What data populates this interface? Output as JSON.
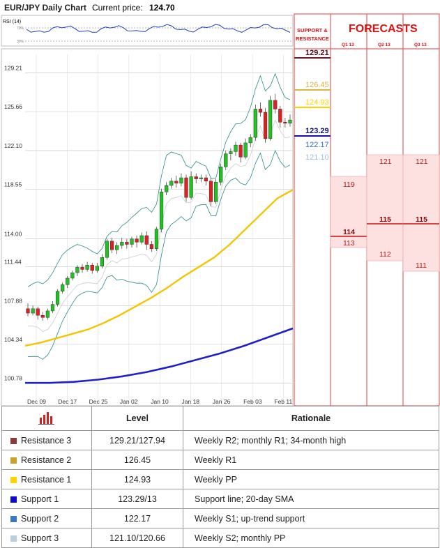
{
  "header": {
    "title": "EUR/JPY Daily Chart",
    "price_label": "Current price:",
    "price_value": "124.70"
  },
  "rsi": {
    "label": "RSI (14)",
    "upper": "70%",
    "lower": "30%"
  },
  "chart_data": {
    "type": "candlestick",
    "yticks": [
      "129.21",
      "125.66",
      "122.10",
      "118.55",
      "114.00",
      "111.44",
      "107.88",
      "104.34",
      "100.78"
    ],
    "ytick_values": [
      129.21,
      125.66,
      122.1,
      118.55,
      114.0,
      111.44,
      107.88,
      104.34,
      100.78
    ],
    "xticks": [
      "Dec 09",
      "Dec 17",
      "Dec 25",
      "Jan 02",
      "Jan 10",
      "Jan 18",
      "Jan 26",
      "Feb 03",
      "Feb 11"
    ],
    "ylim": [
      100.78,
      130.5
    ],
    "candles": [
      [
        107.6,
        107.2,
        108.1,
        106.9
      ],
      [
        107.2,
        107.6,
        107.9,
        107.0
      ],
      [
        107.6,
        107.0,
        107.8,
        106.6
      ],
      [
        107.0,
        106.8,
        107.3,
        106.5
      ],
      [
        106.8,
        107.4,
        107.6,
        106.6
      ],
      [
        107.4,
        108.0,
        108.3,
        107.2
      ],
      [
        108.0,
        109.2,
        109.4,
        107.8
      ],
      [
        109.2,
        109.8,
        110.0,
        109.0
      ],
      [
        109.8,
        110.4,
        110.6,
        109.5
      ],
      [
        110.4,
        110.9,
        111.1,
        110.2
      ],
      [
        110.9,
        111.4,
        111.6,
        110.6
      ],
      [
        111.4,
        111.2,
        111.7,
        110.9
      ],
      [
        111.2,
        111.6,
        111.9,
        111.0
      ],
      [
        111.6,
        111.1,
        111.8,
        110.8
      ],
      [
        111.1,
        111.5,
        111.8,
        110.9
      ],
      [
        111.5,
        112.3,
        112.6,
        111.3
      ],
      [
        112.3,
        113.8,
        114.0,
        112.1
      ],
      [
        113.8,
        113.0,
        114.1,
        112.7
      ],
      [
        113.0,
        113.4,
        113.7,
        112.6
      ],
      [
        113.4,
        113.7,
        114.1,
        113.1
      ],
      [
        113.7,
        113.5,
        114.0,
        113.1
      ],
      [
        113.5,
        114.0,
        114.2,
        113.2
      ],
      [
        114.0,
        113.7,
        114.3,
        113.2
      ],
      [
        113.7,
        114.3,
        114.6,
        113.5
      ],
      [
        114.3,
        113.5,
        114.7,
        113.0
      ],
      [
        113.5,
        113.1,
        113.8,
        112.8
      ],
      [
        113.1,
        114.9,
        115.1,
        112.9
      ],
      [
        114.9,
        118.3,
        118.6,
        114.6
      ],
      [
        118.3,
        118.9,
        119.2,
        118.0
      ],
      [
        118.9,
        119.3,
        119.6,
        118.6
      ],
      [
        119.3,
        119.1,
        119.8,
        118.7
      ],
      [
        119.1,
        119.6,
        120.0,
        118.8
      ],
      [
        119.6,
        117.8,
        119.9,
        117.4
      ],
      [
        117.8,
        119.7,
        120.2,
        117.6
      ],
      [
        119.7,
        119.5,
        120.0,
        119.1
      ],
      [
        119.5,
        119.6,
        119.9,
        119.2
      ],
      [
        119.6,
        119.3,
        119.9,
        118.9
      ],
      [
        119.3,
        117.4,
        119.6,
        117.0
      ],
      [
        117.4,
        119.2,
        119.5,
        117.2
      ],
      [
        119.2,
        120.6,
        120.9,
        118.9
      ],
      [
        120.6,
        121.8,
        122.1,
        120.3
      ],
      [
        121.8,
        122.0,
        122.3,
        121.2
      ],
      [
        122.0,
        122.6,
        122.9,
        121.6
      ],
      [
        122.6,
        121.5,
        122.8,
        121.0
      ],
      [
        121.5,
        122.8,
        123.2,
        121.3
      ],
      [
        122.8,
        123.3,
        123.6,
        122.4
      ],
      [
        123.3,
        125.9,
        126.3,
        123.0
      ],
      [
        125.9,
        125.6,
        126.5,
        125.2
      ],
      [
        125.6,
        123.2,
        126.0,
        122.8
      ],
      [
        123.2,
        126.7,
        127.1,
        123.0
      ],
      [
        126.7,
        125.9,
        127.3,
        125.5
      ],
      [
        125.9,
        124.7,
        126.2,
        124.2
      ],
      [
        124.7,
        124.6,
        125.1,
        124.2
      ],
      [
        124.6,
        124.9,
        125.4,
        124.3
      ]
    ],
    "sma_yellow": [
      104.2,
      104.5,
      104.9,
      105.3,
      105.7,
      106.3,
      107.0,
      107.8,
      108.6,
      109.5,
      110.5,
      111.4,
      112.3,
      113.5,
      114.9,
      116.3,
      117.7,
      118.5
    ],
    "sma_blue": [
      100.8,
      100.8,
      100.9,
      101.1,
      101.4,
      101.8,
      102.3,
      102.9,
      103.5,
      104.2,
      105.0,
      105.8
    ],
    "series": [
      {
        "name": "RSI (14)"
      }
    ]
  },
  "levels": [
    {
      "value": "129.21",
      "color": "#6b1a2e"
    },
    {
      "value": "126.45",
      "color": "#d9b440"
    },
    {
      "value": "124.93",
      "color": "#ffd200"
    },
    {
      "value": "123.29",
      "color": "#1010b0"
    },
    {
      "value": "122.17",
      "color": "#3a6fb0"
    },
    {
      "value": "121.10",
      "color": "#9ec2d8"
    }
  ],
  "forecasts": {
    "sr_label_1": "SUPPORT &",
    "sr_label_2": "RESISTANCE",
    "title": "FORECASTS",
    "quarters": [
      "Q1 13",
      "Q2 13",
      "Q3 13"
    ],
    "q1": {
      "high": "119",
      "mid": "114",
      "low": "113"
    },
    "q2": {
      "high": "121",
      "mid": "115",
      "low": "112"
    },
    "q3": {
      "high": "121",
      "mid": "115",
      "low": "111"
    }
  },
  "table": {
    "col_level": "Level",
    "col_rationale": "Rationale",
    "rows": [
      {
        "name": "Resistance 3",
        "level": "129.21/127.94",
        "rationale": "Weekly R2; monthly R1; 34-month high",
        "color": "#8b3a3a"
      },
      {
        "name": "Resistance 2",
        "level": "126.45",
        "rationale": "Weekly R1",
        "color": "#c9a227"
      },
      {
        "name": "Resistance 1",
        "level": "124.93",
        "rationale": "Weekly PP",
        "color": "#ffd200"
      },
      {
        "name": "Support 1",
        "level": "123.29/13",
        "rationale": "Support line; 20-day SMA",
        "color": "#0a0ad0"
      },
      {
        "name": "Support 2",
        "level": "122.17",
        "rationale": "Weekly S1; up-trend support",
        "color": "#3a78c0"
      },
      {
        "name": "Support 3",
        "level": "121.10/120.66",
        "rationale": "Weekly S2; monthly PP",
        "color": "#b8cfe0"
      }
    ]
  }
}
